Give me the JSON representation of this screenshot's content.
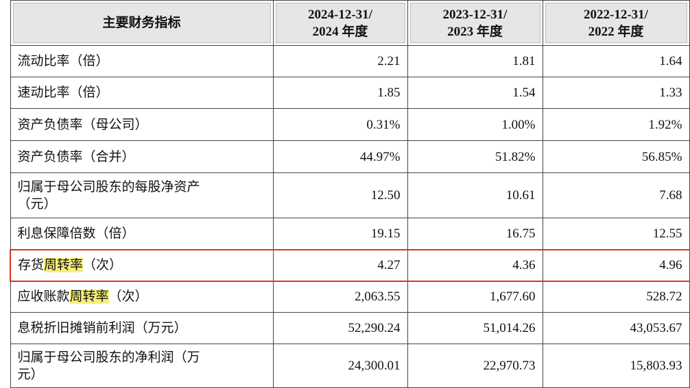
{
  "table": {
    "header": [
      [
        "主要财务指标"
      ],
      [
        "2024-12-31/",
        "2024 年度"
      ],
      [
        "2023-12-31/",
        "2023 年度"
      ],
      [
        "2022-12-31/",
        "2022 年度"
      ]
    ],
    "rows": [
      {
        "label": [
          "流动比率（倍）"
        ],
        "values": [
          "2.21",
          "1.81",
          "1.64"
        ]
      },
      {
        "label": [
          "速动比率（倍）"
        ],
        "values": [
          "1.85",
          "1.54",
          "1.33"
        ]
      },
      {
        "label": [
          "资产负债率（母公司）"
        ],
        "values": [
          "0.31%",
          "1.00%",
          "1.92%"
        ]
      },
      {
        "label": [
          "资产负债率（合并）"
        ],
        "values": [
          "44.97%",
          "51.82%",
          "56.85%"
        ]
      },
      {
        "label": [
          "归属于母公司股东的每股净资产",
          "（元）"
        ],
        "values": [
          "12.50",
          "10.61",
          "7.68"
        ]
      },
      {
        "label": [
          "利息保障倍数（倍）"
        ],
        "values": [
          "19.15",
          "16.75",
          "12.55"
        ]
      },
      {
        "label": [
          "存货",
          "周转率",
          "（次）"
        ],
        "values": [
          "4.27",
          "4.36",
          "4.96"
        ]
      },
      {
        "label": [
          "应收账款",
          "周转率",
          "（次）"
        ],
        "values": [
          "2,063.55",
          "1,677.60",
          "528.72"
        ]
      },
      {
        "label": [
          "息税折旧摊销前利润（万元）"
        ],
        "values": [
          "52,290.24",
          "51,014.26",
          "43,053.67"
        ]
      },
      {
        "label": [
          "归属于母公司股东的净利润（万",
          "元）"
        ],
        "values": [
          "24,300.01",
          "22,970.73",
          "15,803.93"
        ]
      }
    ]
  }
}
